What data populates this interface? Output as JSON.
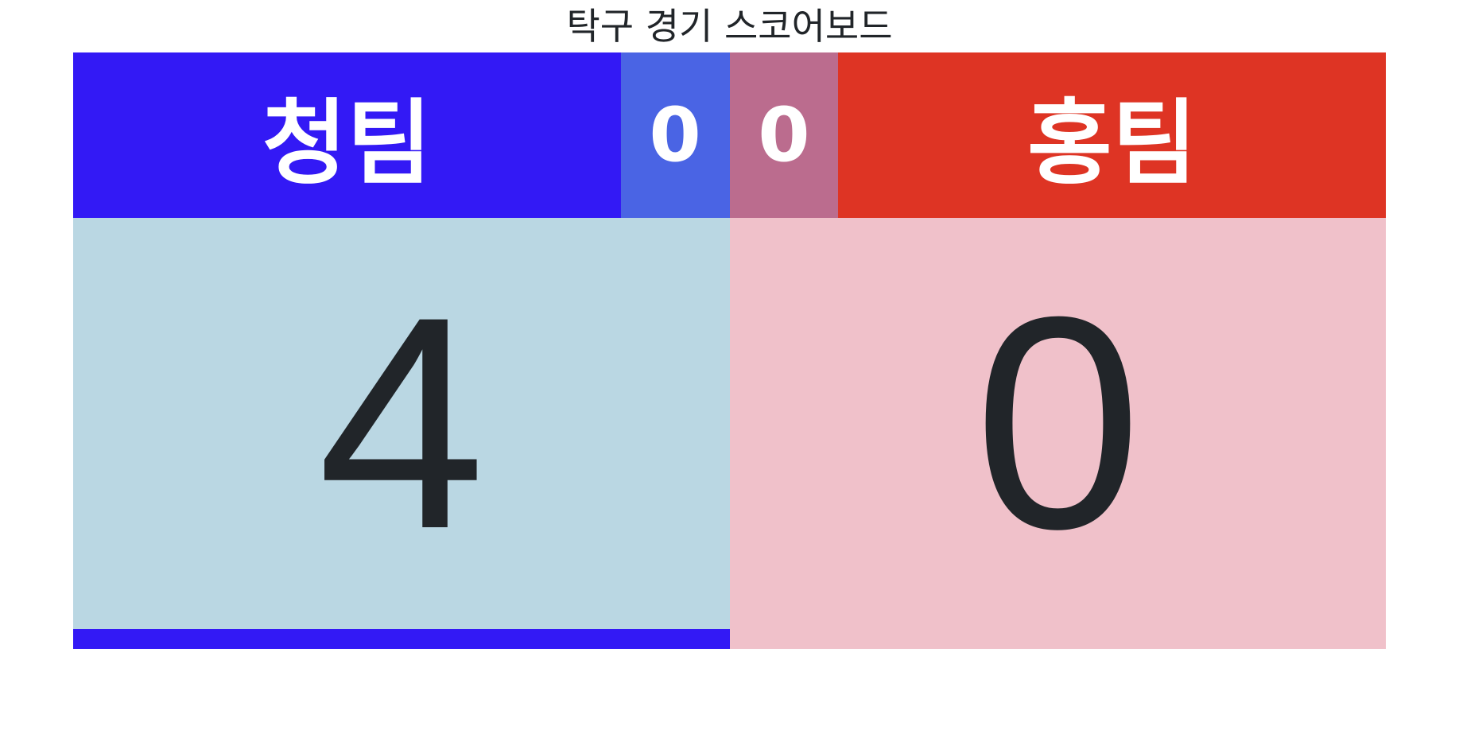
{
  "title": "탁구 경기 스코어보드",
  "blue_team": {
    "name": "청팀",
    "sets": "0",
    "points": "4",
    "colors": {
      "header": "#3319f5",
      "set_box": "#4a64e4",
      "panel": "#bad7e3",
      "serve_indicator": "#3319f5"
    },
    "serving": true
  },
  "red_team": {
    "name": "홍팀",
    "sets": "0",
    "points": "0",
    "colors": {
      "header": "#de3424",
      "set_box": "#bb6c8e",
      "panel": "#f0c1ca"
    },
    "serving": false
  }
}
